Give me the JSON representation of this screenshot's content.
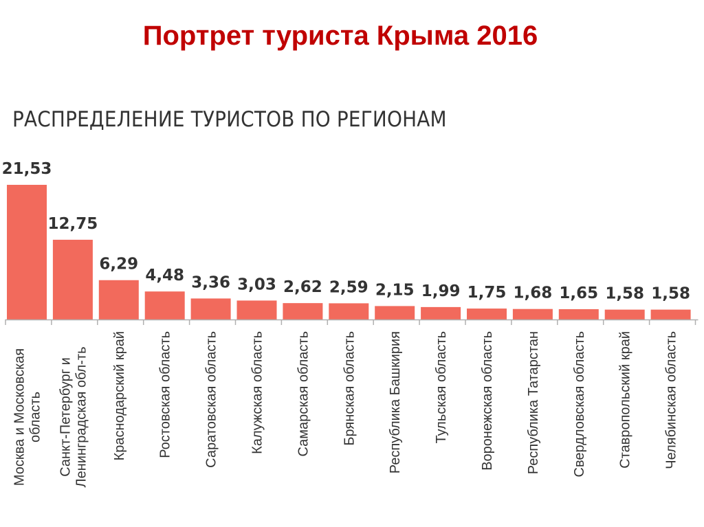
{
  "page": {
    "title": "Портрет туриста Крыма 2016"
  },
  "colors": {
    "title": "#c00000",
    "subtitle": "#333333",
    "bar": "#f26a5c",
    "axis": "#b0b0b0",
    "text": "#333333"
  },
  "chart_data": {
    "type": "bar",
    "title": "Распределение туристов по регионам",
    "xlabel": "",
    "ylabel": "",
    "ylim": [
      0,
      22
    ],
    "grid": false,
    "categories": [
      [
        "Москва и Московская",
        "область"
      ],
      [
        "Санкт-Петербург и",
        "Ленинградская обл-ть"
      ],
      [
        "Краснодарский край"
      ],
      [
        "Ростовская область"
      ],
      [
        "Саратовская область"
      ],
      [
        "Калужская область"
      ],
      [
        "Самарская область"
      ],
      [
        "Брянская область"
      ],
      [
        "Республика Башкирия"
      ],
      [
        "Тульская область"
      ],
      [
        "Воронежская область"
      ],
      [
        "Республика Татарстан"
      ],
      [
        "Свердловская область"
      ],
      [
        "Ставропольский край"
      ],
      [
        "Челябинская область"
      ]
    ],
    "values": [
      21.53,
      12.75,
      6.29,
      4.48,
      3.36,
      3.03,
      2.62,
      2.59,
      2.15,
      1.99,
      1.75,
      1.68,
      1.65,
      1.58,
      1.58
    ],
    "value_labels": [
      "21,53",
      "12,75",
      "6,29",
      "4,48",
      "3,36",
      "3,03",
      "2,62",
      "2,59",
      "2,15",
      "1,99",
      "1,75",
      "1,68",
      "1,65",
      "1,58",
      "1,58"
    ]
  }
}
